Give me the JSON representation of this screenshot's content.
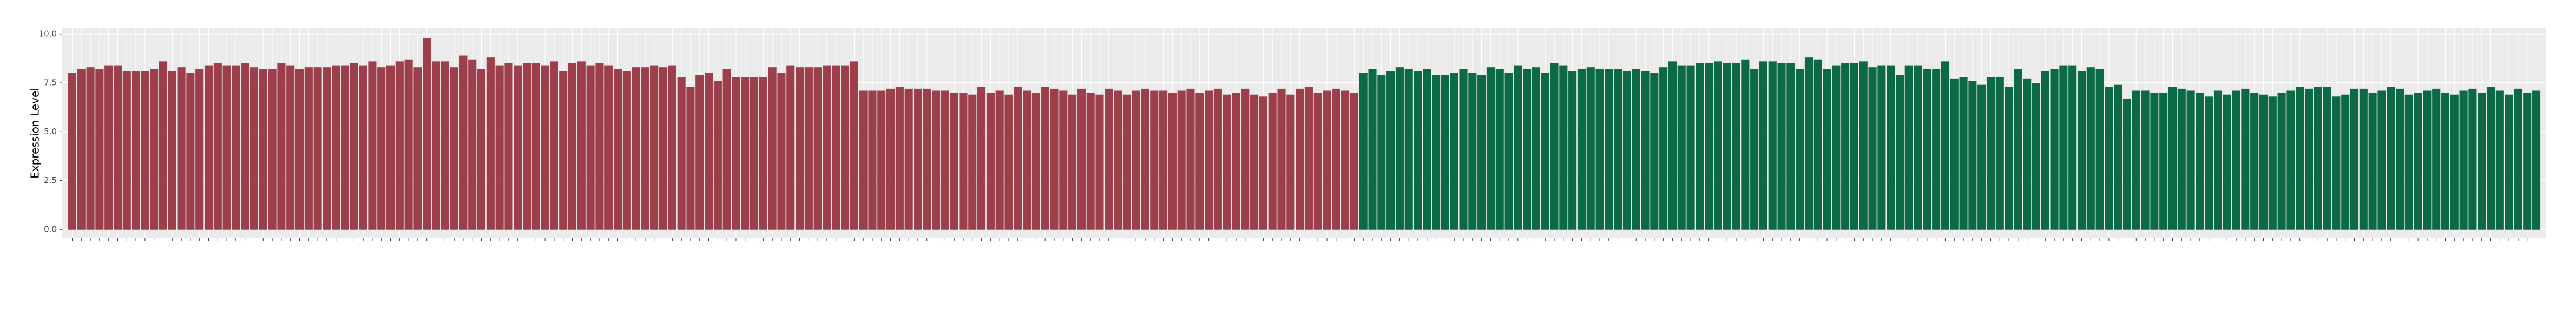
{
  "chart_data": {
    "type": "bar",
    "y_label": "Expression Level",
    "ylim": [
      -0.45,
      10.3
    ],
    "yticks": [
      {
        "value": 0,
        "label": "0.0"
      },
      2.5,
      {
        "value": 5,
        "label": "5.0"
      },
      7.5,
      {
        "value": 10,
        "label": "10.0"
      }
    ],
    "grid": true,
    "series": [
      {
        "color": "#9c3f4b",
        "values": [
          8.0,
          8.2,
          8.3,
          8.2,
          8.4,
          8.4,
          8.1,
          8.1,
          8.1,
          8.2,
          8.6,
          8.1,
          8.3,
          8.0,
          8.2,
          8.4,
          8.5,
          8.4,
          8.4,
          8.5,
          8.3,
          8.2,
          8.2,
          8.5,
          8.4,
          8.2,
          8.3,
          8.3,
          8.3,
          8.4,
          8.4,
          8.5,
          8.4,
          8.6,
          8.3,
          8.4,
          8.6,
          8.7,
          8.3,
          9.8,
          8.6,
          8.6,
          8.3,
          8.9,
          8.7,
          8.2,
          8.8,
          8.4,
          8.5,
          8.4,
          8.5,
          8.5,
          8.4,
          8.6,
          8.1,
          8.5,
          8.6,
          8.4,
          8.5,
          8.4,
          8.2,
          8.1,
          8.3,
          8.3,
          8.4,
          8.3,
          8.4,
          7.8,
          7.3,
          7.9,
          8.0,
          7.6,
          8.2,
          7.8,
          7.8,
          7.8,
          7.8,
          8.3,
          8.0,
          8.4,
          8.3,
          8.3,
          8.3,
          8.4,
          8.4,
          8.4,
          8.6,
          7.1,
          7.1,
          7.1,
          7.2,
          7.3,
          7.2,
          7.2,
          7.2,
          7.1,
          7.1,
          7.0,
          7.0,
          6.9,
          7.3,
          7.0,
          7.1,
          6.9,
          7.3,
          7.1,
          7.0,
          7.3,
          7.2,
          7.1,
          6.9,
          7.2,
          7.0,
          6.9,
          7.2,
          7.1,
          6.9,
          7.1,
          7.2,
          7.1,
          7.1,
          7.0,
          7.1,
          7.2,
          7.0,
          7.1,
          7.2,
          6.9,
          7.0,
          7.2,
          6.9,
          6.8,
          7.0,
          7.2,
          6.9,
          7.2,
          7.3,
          7.0,
          7.1,
          7.2,
          7.1,
          7.0
        ]
      },
      {
        "color": "#0b6a43",
        "values": [
          8.0,
          8.2,
          7.9,
          8.1,
          8.3,
          8.2,
          8.1,
          8.2,
          7.9,
          7.9,
          8.0,
          8.2,
          8.0,
          7.9,
          8.3,
          8.2,
          8.0,
          8.4,
          8.2,
          8.3,
          8.0,
          8.5,
          8.4,
          8.1,
          8.2,
          8.3,
          8.2,
          8.2,
          8.2,
          8.1,
          8.2,
          8.1,
          8.0,
          8.3,
          8.6,
          8.4,
          8.4,
          8.5,
          8.5,
          8.6,
          8.5,
          8.5,
          8.7,
          8.2,
          8.6,
          8.6,
          8.5,
          8.5,
          8.2,
          8.8,
          8.7,
          8.2,
          8.4,
          8.5,
          8.5,
          8.6,
          8.3,
          8.4,
          8.4,
          7.9,
          8.4,
          8.4,
          8.2,
          8.2,
          8.6,
          7.7,
          7.8,
          7.6,
          7.4,
          7.8,
          7.8,
          7.3,
          8.2,
          7.7,
          7.5,
          8.1,
          8.2,
          8.4,
          8.4,
          8.1,
          8.3,
          8.2,
          7.3,
          7.4,
          6.7,
          7.1,
          7.1,
          7.0,
          7.0,
          7.3,
          7.2,
          7.1,
          7.0,
          6.8,
          7.1,
          6.9,
          7.1,
          7.2,
          7.0,
          6.9,
          6.8,
          7.0,
          7.1,
          7.3,
          7.2,
          7.3,
          7.3,
          6.8,
          6.9,
          7.2,
          7.2,
          7.0,
          7.1,
          7.3,
          7.2,
          6.9,
          7.0,
          7.1,
          7.2,
          7.0,
          6.9,
          7.1,
          7.2,
          7.0,
          7.3,
          7.1,
          6.9,
          7.2,
          7.0,
          7.1
        ]
      }
    ]
  }
}
